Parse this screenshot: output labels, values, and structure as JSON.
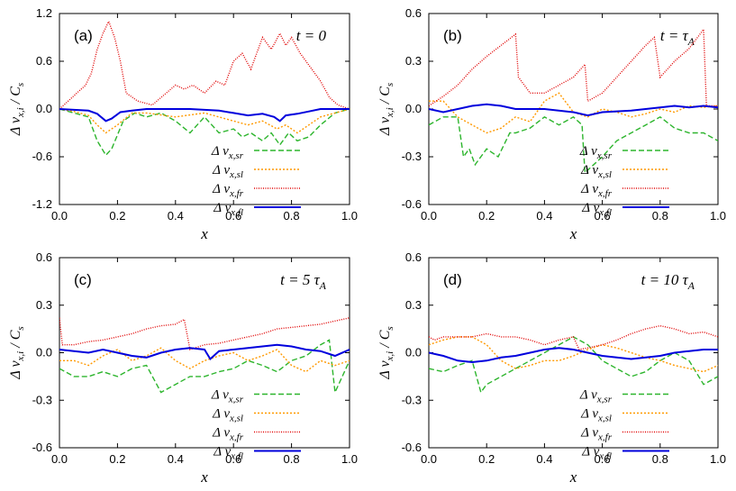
{
  "figure": {
    "x_axis_label": "x",
    "y_axis_label_main": "Δ v",
    "y_axis_label_sub": "x,i",
    "y_axis_label_denominator": "/ C",
    "y_axis_label_denominator_sub": "s",
    "x_ticks": [
      "0.0",
      "0.2",
      "0.4",
      "0.6",
      "0.8",
      "1.0"
    ]
  },
  "legend": [
    {
      "symbol": "Δ v",
      "sub": "x,sr",
      "color": "#2db52d",
      "dash": "6,3"
    },
    {
      "symbol": "Δ v",
      "sub": "x,sl",
      "color": "#ff9900",
      "dash": "2,2"
    },
    {
      "symbol": "Δ v",
      "sub": "x,fr",
      "color": "#e00000",
      "dash": "1,1.5"
    },
    {
      "symbol": "Δ v",
      "sub": "x,fl",
      "color": "#0000dd",
      "dash": ""
    }
  ],
  "chart_data": [
    {
      "type": "line",
      "panel_label": "(a)",
      "time_label": "t = 0",
      "xlim": [
        0,
        1
      ],
      "ylim": [
        -1.2,
        1.2
      ],
      "y_ticks": [
        "1.2",
        "0.6",
        "0.0",
        "-0.6",
        "-1.2"
      ],
      "series": [
        {
          "name": "Δ v_x,sr",
          "x": [
            0,
            0.05,
            0.1,
            0.13,
            0.16,
            0.18,
            0.22,
            0.26,
            0.3,
            0.35,
            0.4,
            0.45,
            0.5,
            0.55,
            0.6,
            0.63,
            0.66,
            0.7,
            0.73,
            0.76,
            0.79,
            0.82,
            0.86,
            0.9,
            0.95,
            1.0
          ],
          "y": [
            0,
            -0.05,
            -0.1,
            -0.4,
            -0.58,
            -0.5,
            -0.15,
            -0.05,
            -0.1,
            -0.05,
            -0.15,
            -0.3,
            -0.1,
            -0.3,
            -0.25,
            -0.35,
            -0.3,
            -0.4,
            -0.3,
            -0.45,
            -0.3,
            -0.4,
            -0.35,
            -0.2,
            -0.05,
            0
          ]
        },
        {
          "name": "Δ v_x,sl",
          "x": [
            0,
            0.05,
            0.1,
            0.13,
            0.16,
            0.2,
            0.25,
            0.3,
            0.4,
            0.5,
            0.6,
            0.65,
            0.7,
            0.75,
            0.78,
            0.82,
            0.86,
            0.9,
            0.95,
            1.0
          ],
          "y": [
            0,
            -0.03,
            -0.08,
            -0.2,
            -0.3,
            -0.2,
            -0.05,
            -0.05,
            -0.1,
            -0.05,
            -0.15,
            -0.2,
            -0.15,
            -0.25,
            -0.2,
            -0.3,
            -0.2,
            -0.1,
            -0.05,
            0
          ]
        },
        {
          "name": "Δ v_x,fr",
          "x": [
            0,
            0.03,
            0.06,
            0.09,
            0.11,
            0.13,
            0.15,
            0.17,
            0.19,
            0.21,
            0.23,
            0.27,
            0.32,
            0.4,
            0.43,
            0.46,
            0.5,
            0.54,
            0.57,
            0.6,
            0.63,
            0.66,
            0.7,
            0.73,
            0.76,
            0.78,
            0.8,
            0.83,
            0.86,
            0.9,
            0.93,
            0.96,
            1.0
          ],
          "y": [
            0,
            0.1,
            0.2,
            0.3,
            0.45,
            0.75,
            0.95,
            1.1,
            0.9,
            0.6,
            0.2,
            0.1,
            0.05,
            0.3,
            0.25,
            0.3,
            0.2,
            0.35,
            0.3,
            0.6,
            0.7,
            0.5,
            0.9,
            0.75,
            0.95,
            0.8,
            0.9,
            0.7,
            0.55,
            0.35,
            0.15,
            0.05,
            0
          ]
        },
        {
          "name": "Δ v_x,fl",
          "x": [
            0,
            0.1,
            0.13,
            0.16,
            0.18,
            0.21,
            0.25,
            0.3,
            0.45,
            0.55,
            0.6,
            0.65,
            0.7,
            0.74,
            0.76,
            0.78,
            0.82,
            0.86,
            0.9,
            1.0
          ],
          "y": [
            0,
            -0.02,
            -0.06,
            -0.15,
            -0.12,
            -0.04,
            -0.02,
            0,
            0,
            -0.02,
            -0.05,
            -0.08,
            -0.06,
            -0.1,
            -0.15,
            -0.08,
            -0.06,
            -0.03,
            0,
            0
          ]
        }
      ]
    },
    {
      "type": "line",
      "panel_label": "(b)",
      "time_label": "t = τ",
      "time_label_sub": "A",
      "xlim": [
        0,
        1
      ],
      "ylim": [
        -0.6,
        0.6
      ],
      "y_ticks": [
        "0.6",
        "0.3",
        "0.0",
        "-0.3",
        "-0.6"
      ],
      "series": [
        {
          "name": "Δ v_x,sr",
          "x": [
            0,
            0.05,
            0.1,
            0.12,
            0.14,
            0.16,
            0.2,
            0.24,
            0.28,
            0.3,
            0.35,
            0.4,
            0.45,
            0.5,
            0.53,
            0.54,
            0.57,
            0.6,
            0.65,
            0.7,
            0.75,
            0.8,
            0.85,
            0.9,
            0.95,
            1.0
          ],
          "y": [
            -0.1,
            -0.05,
            -0.05,
            -0.3,
            -0.25,
            -0.35,
            -0.25,
            -0.3,
            -0.15,
            -0.15,
            -0.12,
            -0.05,
            -0.1,
            -0.05,
            -0.1,
            -0.4,
            -0.35,
            -0.3,
            -0.2,
            -0.15,
            -0.1,
            -0.05,
            -0.12,
            -0.15,
            -0.15,
            -0.2
          ]
        },
        {
          "name": "Δ v_x,sl",
          "x": [
            0,
            0.05,
            0.1,
            0.15,
            0.2,
            0.25,
            0.3,
            0.35,
            0.4,
            0.45,
            0.5,
            0.55,
            0.6,
            0.65,
            0.7,
            0.75,
            0.8,
            0.85,
            0.9,
            0.95,
            1.0
          ],
          "y": [
            0.05,
            0.05,
            -0.05,
            -0.1,
            -0.15,
            -0.12,
            -0.05,
            -0.08,
            0.05,
            0.1,
            -0.02,
            -0.05,
            0,
            -0.02,
            -0.05,
            -0.03,
            0,
            -0.02,
            0.02,
            0.01,
            0.02
          ]
        },
        {
          "name": "Δ v_x,fr",
          "x": [
            0,
            0.05,
            0.1,
            0.15,
            0.2,
            0.25,
            0.3,
            0.31,
            0.35,
            0.4,
            0.45,
            0.5,
            0.54,
            0.55,
            0.6,
            0.65,
            0.7,
            0.75,
            0.78,
            0.8,
            0.85,
            0.9,
            0.95,
            0.96,
            1.0
          ],
          "y": [
            0.02,
            0.08,
            0.15,
            0.25,
            0.33,
            0.4,
            0.47,
            0.2,
            0.1,
            0.1,
            0.15,
            0.2,
            0.28,
            0.05,
            0.1,
            0.2,
            0.3,
            0.4,
            0.45,
            0.2,
            0.3,
            0.38,
            0.5,
            0.02,
            0.02
          ]
        },
        {
          "name": "Δ v_x,fl",
          "x": [
            0,
            0.05,
            0.1,
            0.15,
            0.2,
            0.25,
            0.3,
            0.4,
            0.5,
            0.55,
            0.6,
            0.7,
            0.8,
            0.85,
            0.9,
            0.95,
            1.0
          ],
          "y": [
            0,
            -0.02,
            0,
            0.02,
            0.03,
            0.02,
            0,
            0,
            -0.02,
            -0.04,
            -0.02,
            -0.01,
            0.01,
            0.02,
            0.01,
            0.02,
            0.01
          ]
        }
      ]
    },
    {
      "type": "line",
      "panel_label": "(c)",
      "time_label": "t = 5 τ",
      "time_label_sub": "A",
      "xlim": [
        0,
        1
      ],
      "ylim": [
        -0.6,
        0.6
      ],
      "y_ticks": [
        "0.6",
        "0.3",
        "0.0",
        "-0.3",
        "-0.6"
      ],
      "series": [
        {
          "name": "Δ v_x,sr",
          "x": [
            0,
            0.05,
            0.1,
            0.15,
            0.2,
            0.25,
            0.3,
            0.35,
            0.4,
            0.45,
            0.5,
            0.55,
            0.6,
            0.65,
            0.7,
            0.75,
            0.8,
            0.85,
            0.9,
            0.93,
            0.95,
            1.0
          ],
          "y": [
            -0.1,
            -0.15,
            -0.15,
            -0.12,
            -0.15,
            -0.1,
            -0.08,
            -0.25,
            -0.2,
            -0.15,
            -0.15,
            -0.12,
            -0.1,
            -0.05,
            -0.08,
            -0.12,
            -0.05,
            -0.02,
            0.05,
            0.08,
            -0.25,
            -0.05
          ]
        },
        {
          "name": "Δ v_x,sl",
          "x": [
            0,
            0.05,
            0.1,
            0.15,
            0.2,
            0.25,
            0.3,
            0.35,
            0.4,
            0.45,
            0.5,
            0.55,
            0.6,
            0.65,
            0.7,
            0.75,
            0.8,
            0.85,
            0.9,
            0.95,
            1.0
          ],
          "y": [
            -0.05,
            -0.05,
            -0.08,
            -0.02,
            0.02,
            -0.05,
            -0.02,
            0.03,
            -0.05,
            -0.1,
            -0.05,
            -0.02,
            0,
            -0.05,
            -0.02,
            0.02,
            -0.08,
            -0.12,
            -0.05,
            -0.08,
            -0.05
          ]
        },
        {
          "name": "Δ v_x,fr",
          "x": [
            0,
            0.01,
            0.05,
            0.1,
            0.15,
            0.2,
            0.25,
            0.3,
            0.35,
            0.4,
            0.43,
            0.45,
            0.5,
            0.55,
            0.6,
            0.65,
            0.7,
            0.75,
            0.8,
            0.85,
            0.9,
            0.95,
            1.0
          ],
          "y": [
            0.22,
            0.05,
            0.05,
            0.07,
            0.08,
            0.1,
            0.12,
            0.15,
            0.17,
            0.18,
            0.21,
            0.02,
            0.05,
            0.06,
            0.08,
            0.1,
            0.12,
            0.15,
            0.16,
            0.17,
            0.18,
            0.2,
            0.22
          ]
        },
        {
          "name": "Δ v_x,fl",
          "x": [
            0,
            0.05,
            0.1,
            0.15,
            0.2,
            0.25,
            0.3,
            0.35,
            0.4,
            0.45,
            0.5,
            0.52,
            0.55,
            0.6,
            0.65,
            0.7,
            0.75,
            0.8,
            0.85,
            0.9,
            0.95,
            1.0
          ],
          "y": [
            0.02,
            0.01,
            0,
            0.02,
            0,
            -0.02,
            -0.03,
            0,
            0.02,
            0.03,
            0.02,
            -0.04,
            0.01,
            0.02,
            0.03,
            0.04,
            0.05,
            0.04,
            0.02,
            0.01,
            -0.02,
            0.02
          ]
        }
      ]
    },
    {
      "type": "line",
      "panel_label": "(d)",
      "time_label": "t = 10 τ",
      "time_label_sub": "A",
      "xlim": [
        0,
        1
      ],
      "ylim": [
        -0.6,
        0.6
      ],
      "y_ticks": [
        "0.6",
        "0.3",
        "0.0",
        "-0.3",
        "-0.6"
      ],
      "series": [
        {
          "name": "Δ v_x,sr",
          "x": [
            0,
            0.05,
            0.1,
            0.15,
            0.18,
            0.2,
            0.25,
            0.3,
            0.35,
            0.4,
            0.45,
            0.5,
            0.55,
            0.6,
            0.65,
            0.7,
            0.75,
            0.8,
            0.85,
            0.9,
            0.95,
            1.0
          ],
          "y": [
            -0.1,
            -0.12,
            -0.08,
            -0.05,
            -0.25,
            -0.2,
            -0.15,
            -0.1,
            -0.05,
            0,
            0.05,
            0.1,
            0.05,
            -0.05,
            -0.1,
            -0.15,
            -0.12,
            -0.05,
            0,
            -0.05,
            -0.2,
            -0.15
          ]
        },
        {
          "name": "Δ v_x,sl",
          "x": [
            0,
            0.05,
            0.1,
            0.15,
            0.2,
            0.25,
            0.3,
            0.35,
            0.4,
            0.45,
            0.5,
            0.55,
            0.6,
            0.65,
            0.7,
            0.75,
            0.8,
            0.85,
            0.9,
            0.95,
            1.0
          ],
          "y": [
            0.05,
            0.08,
            0.1,
            0.1,
            0.05,
            -0.05,
            -0.1,
            -0.08,
            -0.05,
            -0.05,
            -0.02,
            0.02,
            0.05,
            0.03,
            0,
            -0.03,
            -0.05,
            -0.08,
            -0.1,
            -0.12,
            -0.08
          ]
        },
        {
          "name": "Δ v_x,fr",
          "x": [
            0,
            0.02,
            0.05,
            0.1,
            0.15,
            0.2,
            0.25,
            0.3,
            0.35,
            0.4,
            0.45,
            0.5,
            0.52,
            0.55,
            0.6,
            0.65,
            0.7,
            0.75,
            0.8,
            0.85,
            0.9,
            0.95,
            1.0
          ],
          "y": [
            0.1,
            0.08,
            0.1,
            0.1,
            0.1,
            0.12,
            0.1,
            0.1,
            0.08,
            0.05,
            0.08,
            0.1,
            0.02,
            0.03,
            0.05,
            0.08,
            0.12,
            0.15,
            0.17,
            0.15,
            0.12,
            0.13,
            0.1
          ]
        },
        {
          "name": "Δ v_x,fl",
          "x": [
            0,
            0.05,
            0.1,
            0.15,
            0.2,
            0.25,
            0.3,
            0.35,
            0.4,
            0.45,
            0.5,
            0.55,
            0.6,
            0.65,
            0.7,
            0.75,
            0.8,
            0.85,
            0.9,
            0.95,
            1.0
          ],
          "y": [
            0,
            -0.02,
            -0.05,
            -0.06,
            -0.05,
            -0.03,
            -0.02,
            0,
            0.02,
            0.03,
            0.02,
            0,
            -0.02,
            -0.03,
            -0.04,
            -0.03,
            -0.02,
            0,
            0.01,
            0.02,
            0.02
          ]
        }
      ]
    }
  ]
}
